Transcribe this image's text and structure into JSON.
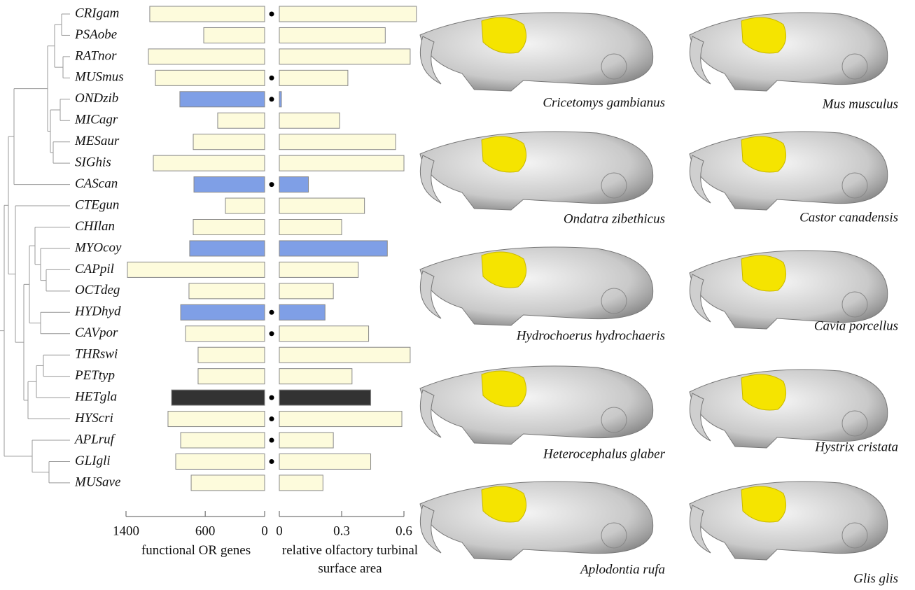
{
  "chart_data": {
    "type": "bar",
    "categories": [
      "CRIgam",
      "PSAobe",
      "RATnor",
      "MUSmus",
      "ONDzib",
      "MICagr",
      "MESaur",
      "SIGhis",
      "CAScan",
      "CTEgun",
      "CHIlan",
      "MYOcoy",
      "CAPpil",
      "OCTdeg",
      "HYDhyd",
      "CAVpor",
      "THRswi",
      "PETtyp",
      "HETgla",
      "HYScri",
      "APLruf",
      "GLIgli",
      "MUSave"
    ],
    "colors": [
      "#fdfbdc",
      "#fdfbdc",
      "#fdfbdc",
      "#fdfbdc",
      "#7f9fe6",
      "#fdfbdc",
      "#fdfbdc",
      "#fdfbdc",
      "#7f9fe6",
      "#fdfbdc",
      "#fdfbdc",
      "#7f9fe6",
      "#fdfbdc",
      "#fdfbdc",
      "#7f9fe6",
      "#fdfbdc",
      "#fdfbdc",
      "#fdfbdc",
      "#333333",
      "#fdfbdc",
      "#fdfbdc",
      "#fdfbdc",
      "#fdfbdc"
    ],
    "marked": [
      true,
      false,
      false,
      true,
      true,
      false,
      false,
      false,
      true,
      false,
      false,
      false,
      false,
      false,
      true,
      true,
      false,
      false,
      true,
      true,
      true,
      true,
      false
    ],
    "series": [
      {
        "name": "functional OR genes",
        "xlim": [
          0,
          1400
        ],
        "xticks": [
          1400,
          600,
          0
        ],
        "values": [
          1160,
          615,
          1174,
          1103,
          856,
          474,
          721,
          1124,
          714,
          396,
          721,
          757,
          1386,
          764,
          848,
          799,
          672,
          672,
          940,
          976,
          848,
          898,
          742
        ]
      },
      {
        "name": "relative olfactory turbinal surface area",
        "xlim": [
          0,
          0.6
        ],
        "xticks": [
          0,
          0.3,
          0.6
        ],
        "values": [
          0.66,
          0.51,
          0.63,
          0.33,
          0.01,
          0.29,
          0.56,
          0.6,
          0.14,
          0.41,
          0.3,
          0.52,
          0.38,
          0.26,
          0.22,
          0.43,
          0.63,
          0.35,
          0.44,
          0.59,
          0.26,
          0.44,
          0.21
        ]
      }
    ],
    "images": [
      {
        "caption": "Cricetomys gambianus"
      },
      {
        "caption": "Mus musculus"
      },
      {
        "caption": "Ondatra zibethicus"
      },
      {
        "caption": "Castor canadensis"
      },
      {
        "caption": "Hydrochoerus hydrochaeris"
      },
      {
        "caption": "Cavia porcellus"
      },
      {
        "caption": "Heterocephalus glaber"
      },
      {
        "caption": "Hystrix cristata"
      },
      {
        "caption": "Aplodontia rufa"
      },
      {
        "caption": "Glis glis"
      }
    ]
  }
}
